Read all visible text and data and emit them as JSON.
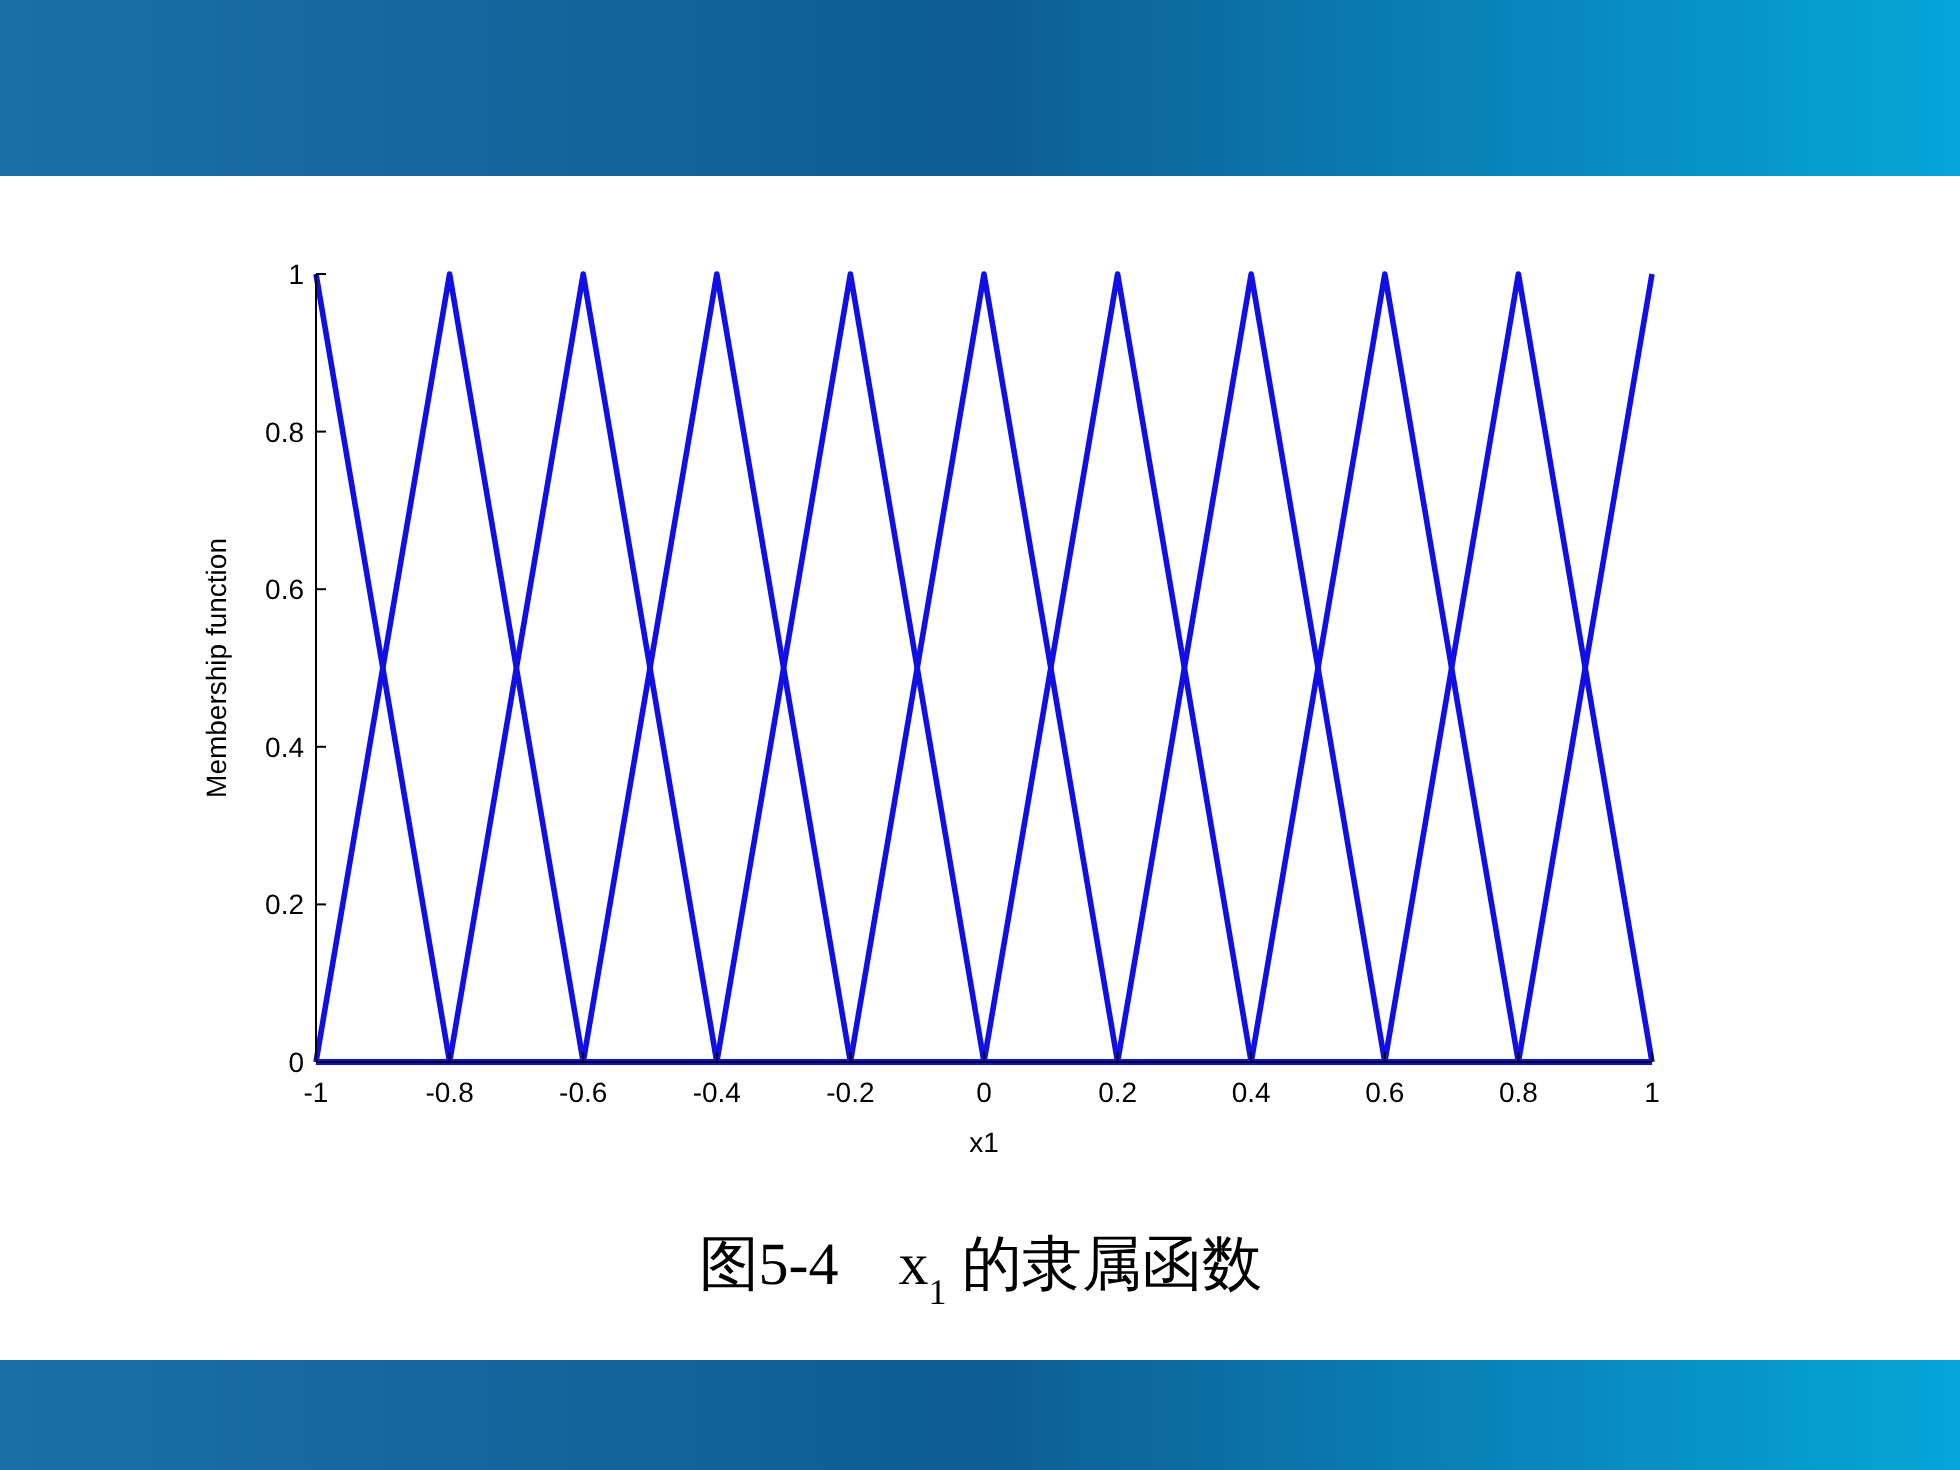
{
  "chart_data": {
    "type": "line",
    "xlabel": "x1",
    "ylabel": "Membership function",
    "annotations": [
      "图5-4　x$_{1}$ 的隶属函数"
    ],
    "xlim": [
      -1,
      1
    ],
    "xticks": [
      -1,
      -0.8,
      -0.6,
      -0.4,
      -0.2,
      0,
      0.2,
      0.4,
      0.6,
      0.8,
      1
    ],
    "ylim": [
      0,
      1
    ],
    "yticks": [
      0,
      0.2,
      0.4,
      0.6,
      0.8,
      1
    ],
    "series": [
      {
        "color": "#0f0fe6",
        "x": [
          -1,
          -0.8,
          1
        ],
        "values": [
          1,
          0,
          0
        ]
      },
      {
        "color": "#0f0fe6",
        "x": [
          -1,
          -0.8,
          -0.6,
          1
        ],
        "values": [
          0,
          1,
          0,
          0
        ]
      },
      {
        "color": "#0f0fe6",
        "x": [
          -1,
          -0.8,
          -0.6,
          -0.4,
          1
        ],
        "values": [
          0,
          0,
          1,
          0,
          0
        ]
      },
      {
        "color": "#0f0fe6",
        "x": [
          -1,
          -0.6,
          -0.4,
          -0.2,
          1
        ],
        "values": [
          0,
          0,
          1,
          0,
          0
        ]
      },
      {
        "color": "#0f0fe6",
        "x": [
          -1,
          -0.4,
          -0.2,
          0,
          1
        ],
        "values": [
          0,
          0,
          1,
          0,
          0
        ]
      },
      {
        "color": "#0f0fe6",
        "x": [
          -1,
          -0.2,
          0,
          0.2,
          1
        ],
        "values": [
          0,
          0,
          1,
          0,
          0
        ]
      },
      {
        "color": "#0f0fe6",
        "x": [
          -1,
          0,
          0.2,
          0.4,
          1
        ],
        "values": [
          0,
          0,
          1,
          0,
          0
        ]
      },
      {
        "color": "#0f0fe6",
        "x": [
          -1,
          0.2,
          0.4,
          0.6,
          1
        ],
        "values": [
          0,
          0,
          1,
          0,
          0
        ]
      },
      {
        "color": "#0f0fe6",
        "x": [
          -1,
          0.4,
          0.6,
          0.8,
          1
        ],
        "values": [
          0,
          0,
          1,
          0,
          0
        ]
      },
      {
        "color": "#0f0fe6",
        "x": [
          -1,
          0.6,
          0.8,
          1
        ],
        "values": [
          0,
          0,
          1,
          0
        ]
      },
      {
        "color": "#0f0fe6",
        "x": [
          -1,
          0.8,
          1
        ],
        "values": [
          0,
          0,
          1
        ]
      }
    ]
  }
}
